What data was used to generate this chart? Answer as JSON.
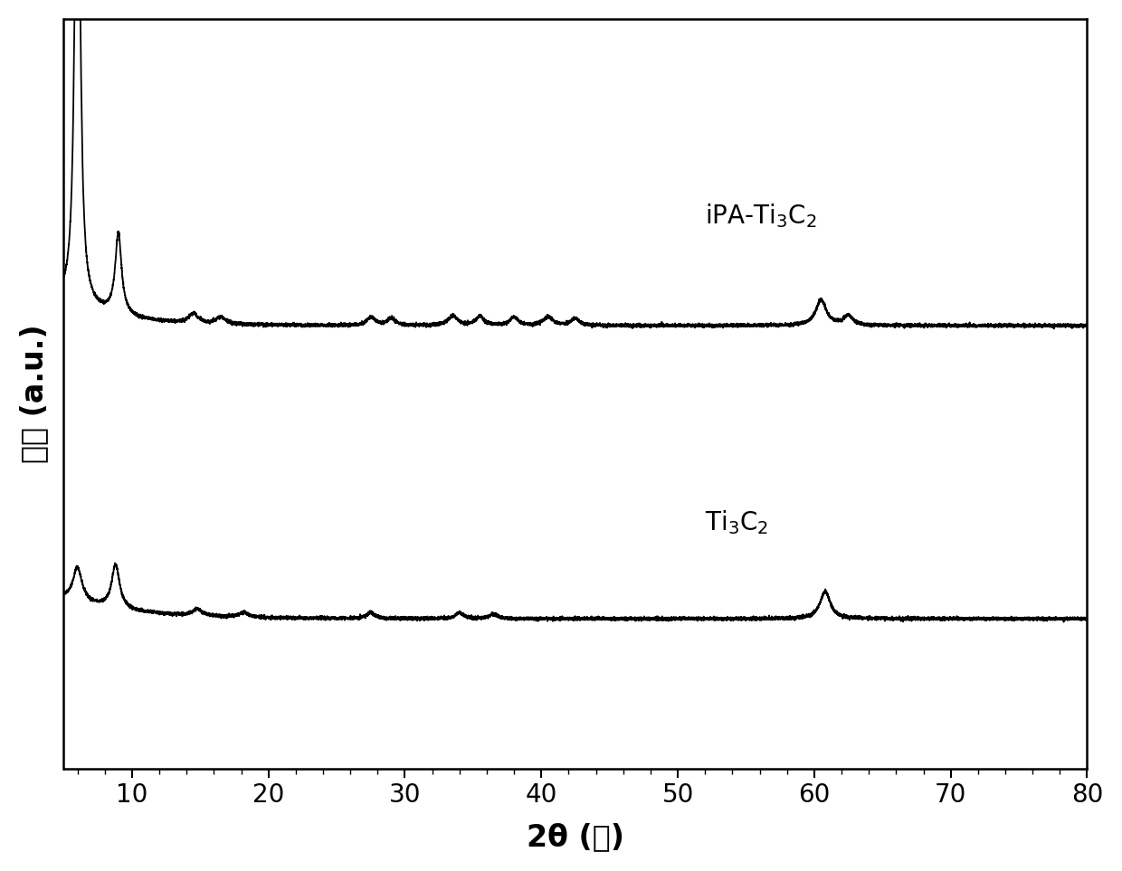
{
  "xlabel": "2θ (度)",
  "ylabel": "强度 (a.u.)",
  "xlim": [
    5,
    80
  ],
  "ylim": [
    0,
    11
  ],
  "xticks": [
    10,
    20,
    30,
    40,
    50,
    60,
    70,
    80
  ],
  "line_color": "#000000",
  "background_color": "#ffffff",
  "label_ipa": "iPA-Ti$_3$C$_2$",
  "label_ti3c2": "Ti$_3$C$_2$",
  "label_fontsize": 20,
  "axis_fontsize": 24,
  "tick_fontsize": 20,
  "ipa_baseline": 6.5,
  "ti3c2_baseline": 2.2
}
